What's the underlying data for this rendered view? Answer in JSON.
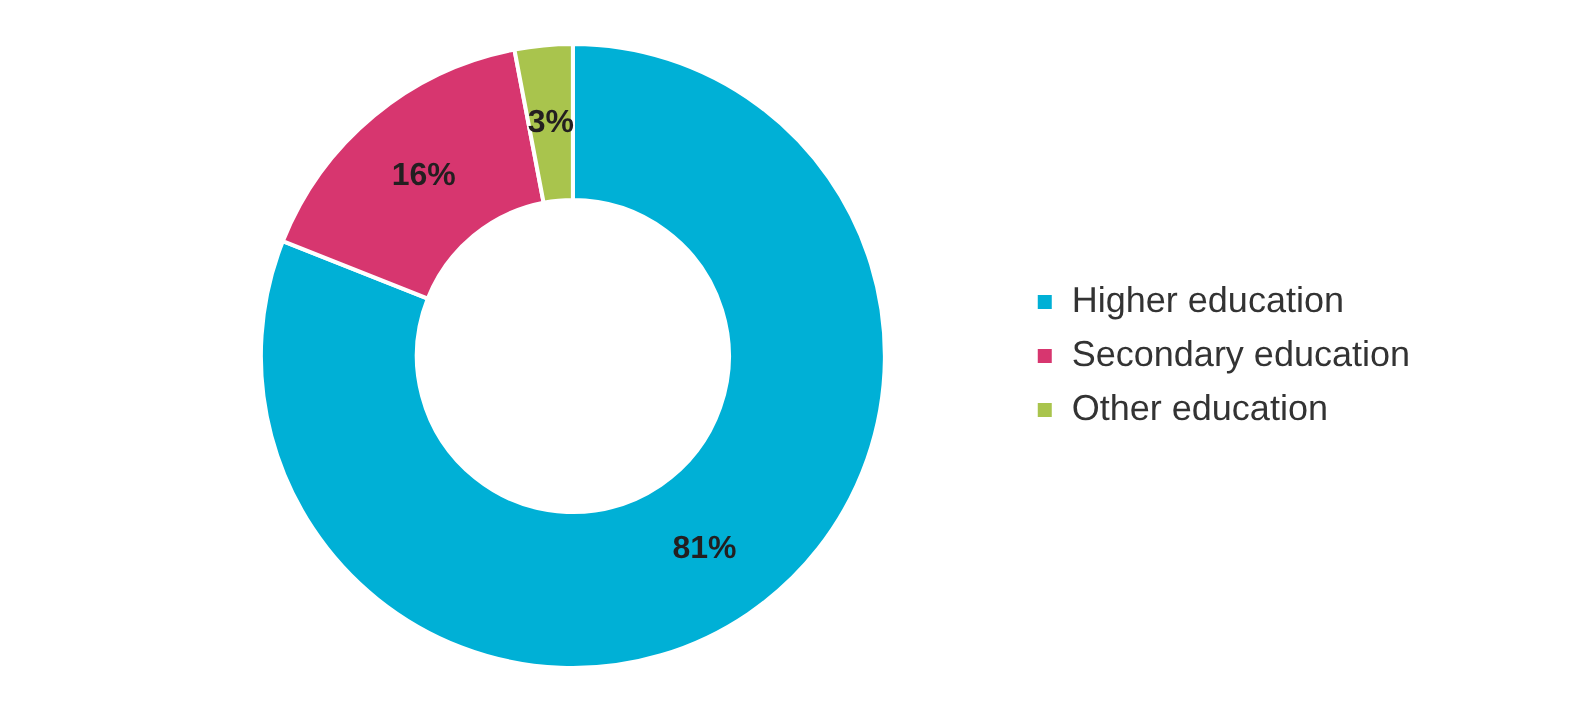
{
  "chart_data": {
    "type": "donut",
    "categories": [
      "Higher education",
      "Secondary education",
      "Other education"
    ],
    "values": [
      81,
      16,
      3
    ],
    "colors": [
      "#00b0d6",
      "#d7366f",
      "#a9c44d"
    ],
    "value_labels": [
      "81%",
      "16%",
      "3%"
    ],
    "legend": "right"
  }
}
